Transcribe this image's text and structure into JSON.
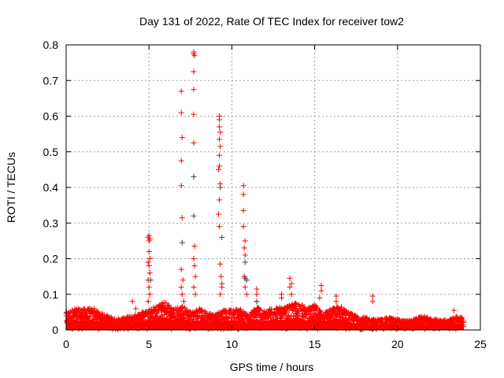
{
  "chart_data": {
    "type": "scatter",
    "title": "Day 131 of 2022, Rate Of TEC Index for receiver tow2",
    "xlabel": "GPS time / hours",
    "ylabel": "ROTI / TECUs",
    "xlim": [
      0,
      25
    ],
    "ylim": [
      0,
      0.8
    ],
    "xticks": [
      "0",
      "5",
      "10",
      "15",
      "20",
      "25"
    ],
    "xtick_values": [
      0,
      5,
      10,
      15,
      20,
      25
    ],
    "yticks": [
      "0",
      "0.1",
      "0.2",
      "0.3",
      "0.4",
      "0.5",
      "0.6",
      "0.7",
      "0.8"
    ],
    "ytick_values": [
      0,
      0.1,
      0.2,
      0.3,
      0.4,
      0.5,
      0.6,
      0.7,
      0.8
    ],
    "grid": true,
    "marker": "+",
    "series_colors": {
      "main": "#ff0000",
      "secondary": "#404040"
    },
    "baseline_envelope": {
      "x_start": 0,
      "x_step": 0.5,
      "values": [
        0.05,
        0.06,
        0.06,
        0.06,
        0.05,
        0.04,
        0.03,
        0.035,
        0.04,
        0.05,
        0.06,
        0.07,
        0.08,
        0.06,
        0.07,
        0.05,
        0.06,
        0.05,
        0.045,
        0.06,
        0.055,
        0.06,
        0.04,
        0.07,
        0.05,
        0.07,
        0.06,
        0.07,
        0.08,
        0.06,
        0.07,
        0.05,
        0.06,
        0.07,
        0.05,
        0.04,
        0.035,
        0.03,
        0.03,
        0.035,
        0.03,
        0.025,
        0.03,
        0.04,
        0.03,
        0.03,
        0.025,
        0.04,
        0.035
      ]
    },
    "series": [
      {
        "name": "main",
        "points": [
          [
            5.0,
            0.265
          ],
          [
            4.95,
            0.26
          ],
          [
            5.05,
            0.255
          ],
          [
            5.0,
            0.25
          ],
          [
            5.0,
            0.22
          ],
          [
            5.05,
            0.2
          ],
          [
            4.95,
            0.19
          ],
          [
            5.0,
            0.18
          ],
          [
            5.05,
            0.16
          ],
          [
            4.95,
            0.14
          ],
          [
            5.0,
            0.12
          ],
          [
            5.05,
            0.1
          ],
          [
            4.95,
            0.08
          ],
          [
            6.95,
            0.67
          ],
          [
            6.95,
            0.61
          ],
          [
            7.0,
            0.54
          ],
          [
            6.95,
            0.475
          ],
          [
            6.95,
            0.405
          ],
          [
            7.0,
            0.315
          ],
          [
            6.95,
            0.17
          ],
          [
            7.05,
            0.14
          ],
          [
            6.95,
            0.12
          ],
          [
            7.0,
            0.1
          ],
          [
            7.1,
            0.08
          ],
          [
            7.7,
            0.78
          ],
          [
            7.7,
            0.775
          ],
          [
            7.75,
            0.77
          ],
          [
            7.7,
            0.725
          ],
          [
            7.7,
            0.675
          ],
          [
            7.7,
            0.605
          ],
          [
            7.7,
            0.525
          ],
          [
            7.75,
            0.235
          ],
          [
            7.7,
            0.2
          ],
          [
            7.75,
            0.18
          ],
          [
            7.8,
            0.15
          ],
          [
            7.7,
            0.12
          ],
          [
            7.8,
            0.1
          ],
          [
            9.25,
            0.6
          ],
          [
            9.25,
            0.59
          ],
          [
            9.25,
            0.57
          ],
          [
            9.3,
            0.555
          ],
          [
            9.25,
            0.535
          ],
          [
            9.3,
            0.515
          ],
          [
            9.25,
            0.49
          ],
          [
            9.25,
            0.46
          ],
          [
            9.2,
            0.45
          ],
          [
            9.3,
            0.41
          ],
          [
            9.25,
            0.365
          ],
          [
            9.2,
            0.325
          ],
          [
            9.25,
            0.29
          ],
          [
            9.3,
            0.185
          ],
          [
            9.35,
            0.15
          ],
          [
            9.4,
            0.13
          ],
          [
            9.4,
            0.12
          ],
          [
            9.3,
            0.1
          ],
          [
            10.7,
            0.405
          ],
          [
            10.7,
            0.38
          ],
          [
            10.7,
            0.335
          ],
          [
            10.7,
            0.29
          ],
          [
            10.8,
            0.25
          ],
          [
            10.75,
            0.23
          ],
          [
            10.8,
            0.21
          ],
          [
            10.75,
            0.15
          ],
          [
            10.8,
            0.12
          ],
          [
            10.9,
            0.1
          ],
          [
            11.5,
            0.115
          ],
          [
            11.5,
            0.1
          ],
          [
            11.5,
            0.08
          ],
          [
            13.5,
            0.145
          ],
          [
            13.6,
            0.13
          ],
          [
            13.5,
            0.12
          ],
          [
            13.6,
            0.1
          ],
          [
            13.0,
            0.1
          ],
          [
            13.0,
            0.09
          ],
          [
            15.4,
            0.125
          ],
          [
            15.4,
            0.11
          ],
          [
            15.3,
            0.09
          ],
          [
            16.3,
            0.095
          ],
          [
            16.3,
            0.08
          ],
          [
            18.5,
            0.095
          ],
          [
            18.5,
            0.08
          ],
          [
            23.4,
            0.055
          ],
          [
            1.7,
            0.06
          ],
          [
            4.0,
            0.08
          ],
          [
            4.2,
            0.06
          ]
        ]
      },
      {
        "name": "secondary",
        "points": [
          [
            7.0,
            0.245
          ],
          [
            7.7,
            0.43
          ],
          [
            7.7,
            0.32
          ],
          [
            9.3,
            0.4
          ],
          [
            9.4,
            0.26
          ],
          [
            10.8,
            0.19
          ],
          [
            10.8,
            0.145
          ],
          [
            10.9,
            0.14
          ],
          [
            5.1,
            0.14
          ],
          [
            11.5,
            0.08
          ]
        ]
      }
    ]
  }
}
